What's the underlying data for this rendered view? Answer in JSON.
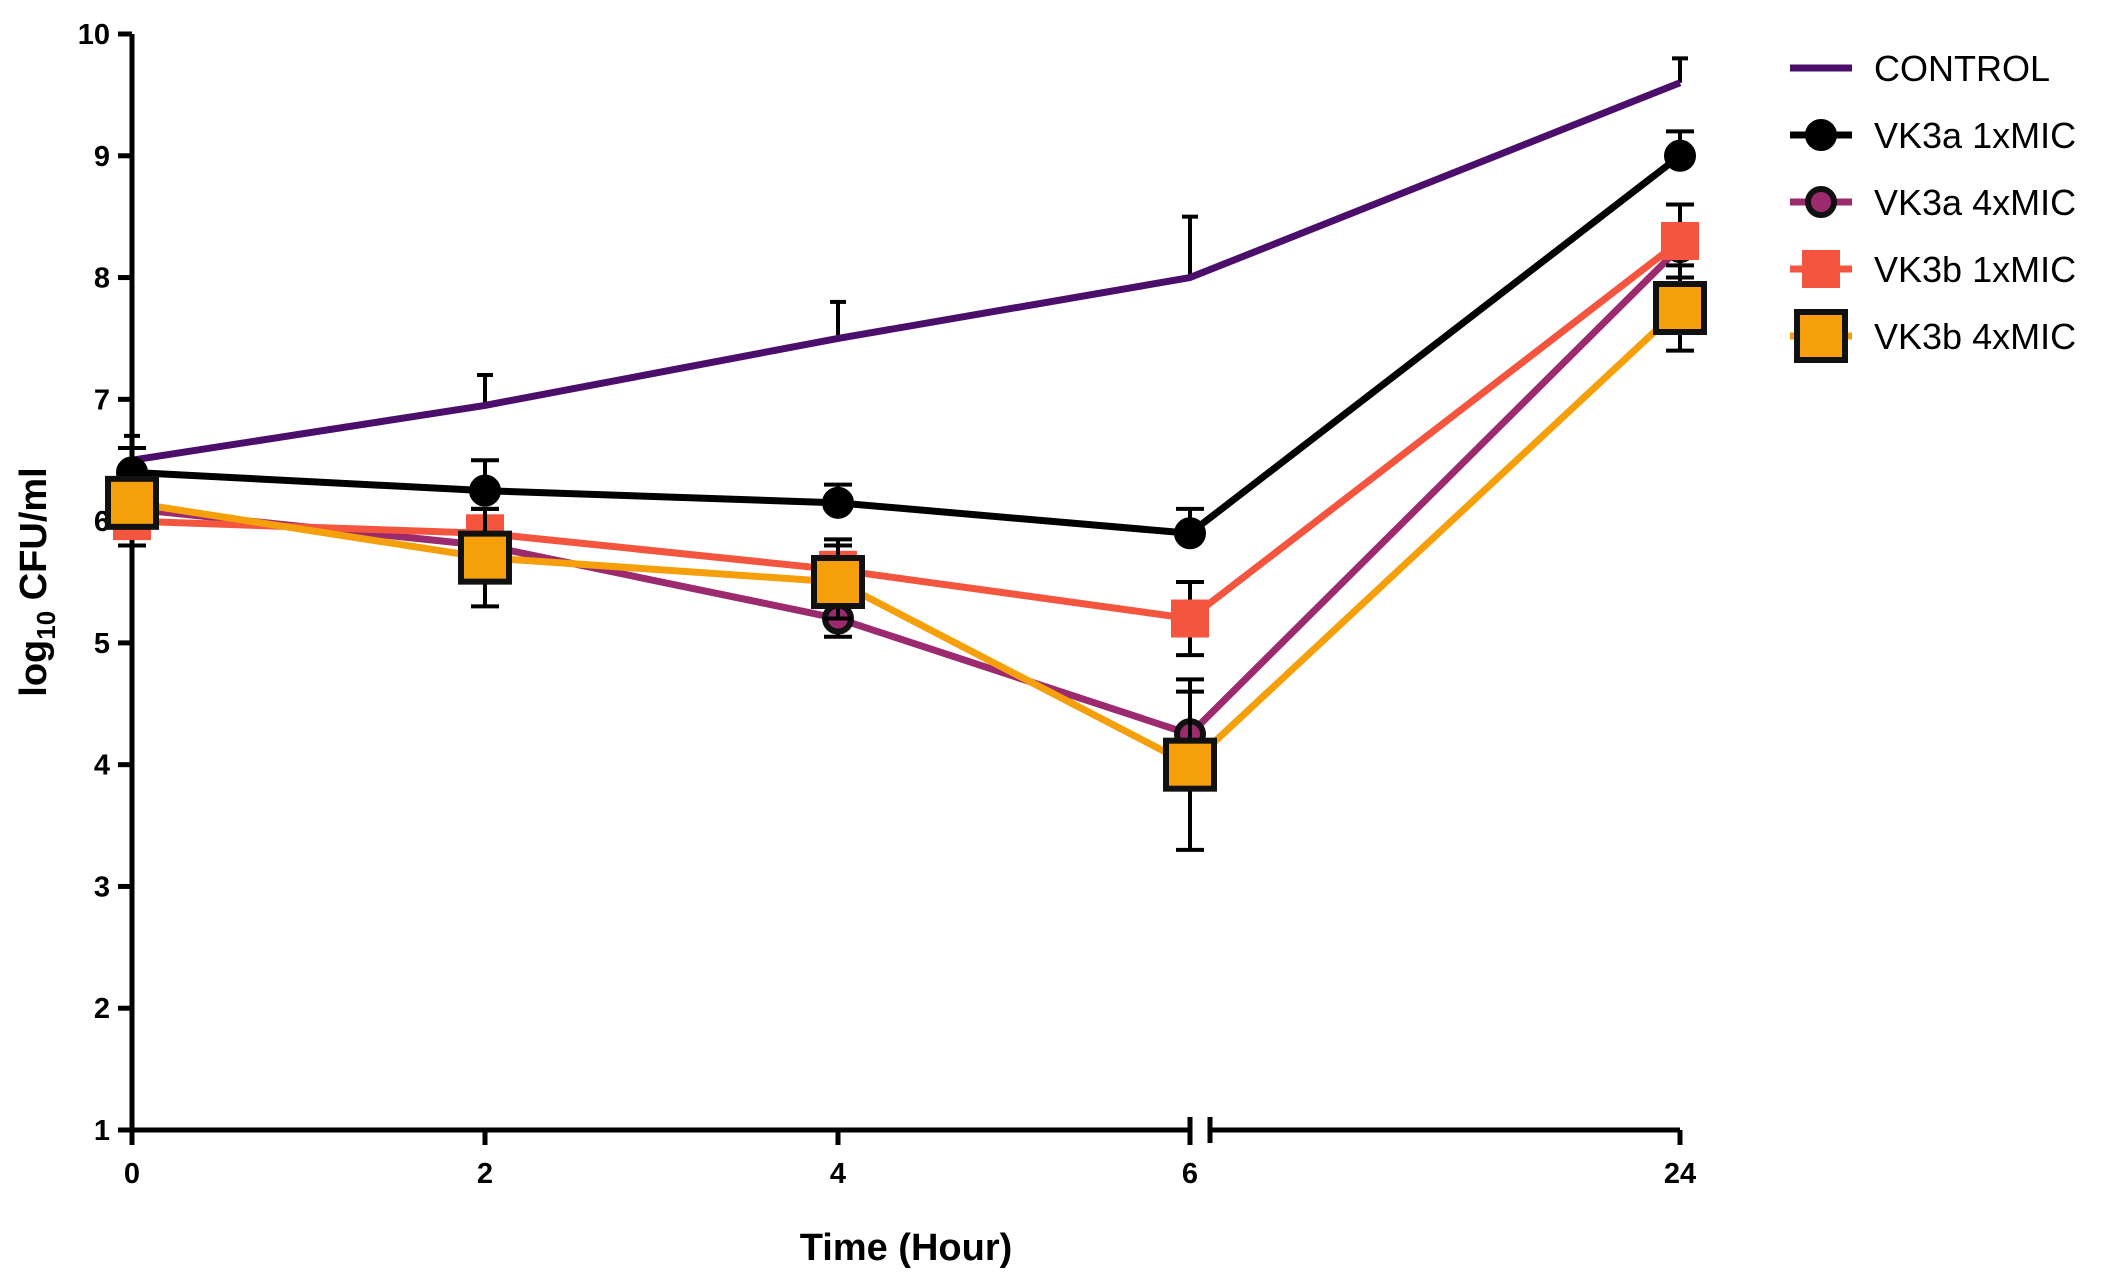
{
  "chart_data": {
    "type": "line",
    "title": "",
    "xlabel": "Time (Hour)",
    "ylabel_main": "log",
    "ylabel_sub": "10",
    "ylabel_rest": " CFU/ml",
    "ylim": [
      1,
      10
    ],
    "yticks": [
      1,
      2,
      3,
      4,
      5,
      6,
      7,
      8,
      9,
      10
    ],
    "categories": [
      "0",
      "2",
      "4",
      "6",
      "24"
    ],
    "axis_break_after": "6",
    "legend_position": "top-right",
    "series": [
      {
        "name": "CONTROL",
        "color": "#4B0F6B",
        "marker": "none",
        "marker_fill": "#4B0F6B",
        "marker_stroke": "#4B0F6B",
        "values": [
          6.5,
          6.95,
          7.5,
          8.0,
          9.6
        ],
        "errors": [
          0.2,
          0.25,
          0.3,
          0.5,
          0.2
        ]
      },
      {
        "name": "VK3a 1xMIC",
        "color": "#000000",
        "marker": "circle",
        "marker_fill": "#000000",
        "marker_stroke": "#000000",
        "values": [
          6.4,
          6.25,
          6.15,
          5.9,
          9.0
        ],
        "errors": [
          0.2,
          0.25,
          0.15,
          0.2,
          0.2
        ]
      },
      {
        "name": "VK3a 4xMIC",
        "color": "#9B2A6E",
        "marker": "circle",
        "marker_fill": "#9B2A6E",
        "marker_stroke": "#111111",
        "values": [
          6.1,
          5.8,
          5.2,
          4.25,
          8.25
        ],
        "errors": [
          0.15,
          0.2,
          0.15,
          0.35,
          0.35
        ]
      },
      {
        "name": "VK3b 1xMIC",
        "color": "#F4553F",
        "marker": "square",
        "marker_fill": "#F4553F",
        "marker_stroke": "#F4553F",
        "values": [
          6.0,
          5.9,
          5.6,
          5.2,
          8.3
        ],
        "errors": [
          0.2,
          0.2,
          0.25,
          0.3,
          0.3
        ]
      },
      {
        "name": "VK3b 4xMIC",
        "color": "#F5A00A",
        "marker": "square",
        "marker_fill": "#F5A00A",
        "marker_stroke": "#111111",
        "values": [
          6.15,
          5.7,
          5.5,
          4.0,
          7.75
        ],
        "errors": [
          0.2,
          0.4,
          0.3,
          0.7,
          0.35
        ]
      }
    ]
  }
}
